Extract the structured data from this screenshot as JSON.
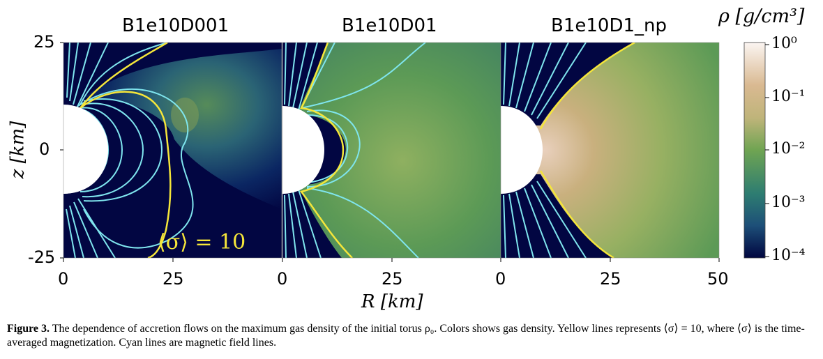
{
  "figure": {
    "panels": [
      {
        "title": "B1e10D001"
      },
      {
        "title": "B1e10D01"
      },
      {
        "title": "B1e10D1_np"
      }
    ],
    "y_axis": {
      "label": "z [km]",
      "ticks": [
        "25",
        "0",
        "-25"
      ]
    },
    "x_axis": {
      "label": "R [km]",
      "ticks": [
        "0",
        "25",
        "0",
        "25",
        "0",
        "25",
        "50"
      ]
    },
    "colorbar": {
      "label": "ρ [g/cm³]",
      "ticks": [
        "10⁰",
        "10⁻¹",
        "10⁻²",
        "10⁻³",
        "10⁻⁴"
      ],
      "colors": [
        "#fbf5f2",
        "#d9b991",
        "#bfb47a",
        "#6fa452",
        "#2e7d71",
        "#1d4f78",
        "#000640"
      ]
    },
    "annotation": "⟨σ⟩ = 10",
    "line_colors": {
      "sigma_contour": "#f5e63a",
      "field_lines": "#7fe5ee"
    }
  },
  "caption": {
    "label": "Figure 3.",
    "text": " The dependence of accretion flows on the maximum gas density of the initial torus ρ₀. Colors shows gas density. Yellow lines represents ⟨σ⟩ = 10, where ⟨σ⟩ is the time-averaged magnetization. Cyan lines are magnetic field lines."
  }
}
